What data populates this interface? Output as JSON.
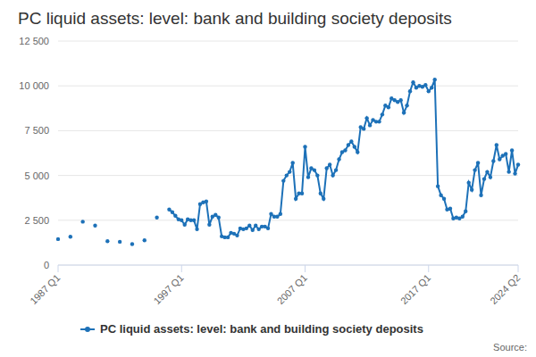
{
  "chart_data": {
    "type": "line",
    "title": "PC liquid assets: level: bank and building society deposits",
    "source": "Source:",
    "legend": "bottom",
    "grid": true,
    "categories": [
      "1987 Q1",
      null,
      null,
      null,
      null,
      null,
      null,
      null,
      null,
      null,
      null,
      null,
      null,
      null,
      null,
      null,
      null,
      null,
      null,
      null,
      null,
      null,
      null,
      null,
      null,
      null,
      null,
      null,
      null,
      null,
      null,
      null,
      null,
      null,
      null,
      null,
      null,
      null,
      null,
      null,
      "1997 Q1",
      null,
      null,
      null,
      null,
      null,
      null,
      null,
      null,
      null,
      null,
      null,
      null,
      null,
      null,
      null,
      null,
      null,
      null,
      null,
      null,
      null,
      null,
      null,
      null,
      null,
      null,
      null,
      null,
      null,
      null,
      null,
      null,
      null,
      null,
      null,
      null,
      null,
      null,
      null,
      "2007 Q1",
      null,
      null,
      null,
      null,
      null,
      null,
      null,
      null,
      null,
      null,
      null,
      null,
      null,
      null,
      null,
      null,
      null,
      null,
      null,
      null,
      null,
      null,
      null,
      null,
      null,
      null,
      null,
      null,
      null,
      null,
      null,
      null,
      null,
      null,
      null,
      null,
      null,
      null,
      null,
      "2017 Q1",
      null,
      null,
      null,
      null,
      null,
      null,
      null,
      null,
      null,
      null,
      null,
      null,
      null,
      null,
      null,
      null,
      null,
      null,
      null,
      null,
      null,
      null,
      null,
      null,
      null,
      null,
      null,
      null,
      "2024 Q2"
    ],
    "ylim": [
      0,
      12500
    ],
    "yticks": [
      0,
      {
        "value": 2500,
        "label": "2 500"
      },
      {
        "value": 5000,
        "label": "5 000"
      },
      {
        "value": 7500,
        "label": "7 500"
      },
      {
        "value": 10000,
        "label": "10 000"
      },
      {
        "value": 12500,
        "label": "12 500"
      }
    ],
    "series": [
      {
        "name": "PC liquid assets: level: bank and building society deposits",
        "color": "#1d71b8",
        "marker": "circle",
        "line_style": "solid",
        "values": [
          1450,
          null,
          null,
          null,
          1580,
          null,
          null,
          null,
          2420,
          null,
          null,
          null,
          2200,
          null,
          null,
          null,
          1330,
          null,
          null,
          null,
          1300,
          null,
          null,
          null,
          1170,
          null,
          null,
          null,
          1380,
          null,
          null,
          null,
          2650,
          null,
          null,
          null,
          3100,
          2950,
          2750,
          2550,
          2500,
          2250,
          2550,
          2500,
          2500,
          2000,
          3400,
          3500,
          3550,
          2250,
          2700,
          2800,
          2650,
          1600,
          1550,
          1550,
          1800,
          1750,
          1650,
          2050,
          2000,
          2050,
          2200,
          1950,
          2200,
          2000,
          2150,
          2150,
          2050,
          2850,
          2700,
          2700,
          2850,
          4700,
          5000,
          5200,
          5700,
          3700,
          4000,
          4000,
          6600,
          4900,
          5400,
          5300,
          5000,
          4000,
          3700,
          5400,
          5600,
          5000,
          5300,
          5900,
          6300,
          6400,
          6700,
          6900,
          6600,
          6300,
          7700,
          7600,
          8200,
          7800,
          8100,
          8000,
          8000,
          8400,
          8900,
          8800,
          9300,
          9200,
          9100,
          9200,
          8500,
          8900,
          9700,
          10200,
          9900,
          10000,
          9950,
          10050,
          9700,
          9900,
          10350,
          4400,
          3900,
          3700,
          3100,
          3150,
          2600,
          2650,
          2600,
          2700,
          3000,
          4600,
          4200,
          5300,
          5700,
          3900,
          4800,
          5200,
          4900,
          5800,
          6700,
          5900,
          6100,
          6200,
          5200,
          6400,
          5100,
          5600
        ]
      }
    ]
  }
}
